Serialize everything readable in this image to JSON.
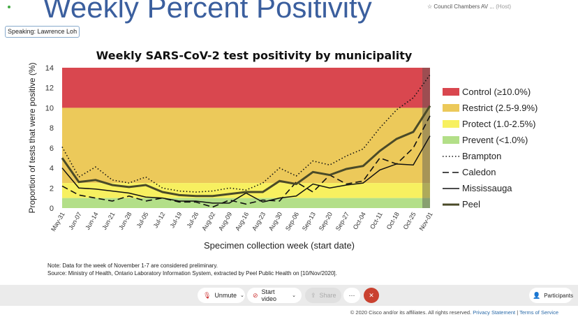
{
  "slide": {
    "title": "Weekly Percent Positivity",
    "note": "Note: Data for the week of November 1-7 are considered preliminary.",
    "source": "Source: Ministry of Health, Ontario Laboratory Information System, extracted by Peel Public Health on [10/Nov/2020]."
  },
  "meeting": {
    "speaking": "Speaking: Lawrence Loh",
    "name": "Council Chambers AV ...",
    "role": "(Host)"
  },
  "toolbar": {
    "unmute": "Unmute",
    "start_video": "Start video",
    "share": "Share",
    "more": "···",
    "participants": "Participants"
  },
  "footer": {
    "copyright": "© 2020 Cisco and/or its affiliates. All rights reserved.",
    "privacy": "Privacy Statement",
    "sep": "|",
    "terms": "Terms of Service"
  },
  "chart_data": {
    "type": "line",
    "title": "Weekly SARS-CoV-2 test positivity by municipality",
    "xlabel": "Specimen collection week (start date)",
    "ylabel": "Proportion of tests that were positive (%)",
    "ylim": [
      0,
      14
    ],
    "yticks": [
      "0",
      "2",
      "4",
      "6",
      "8",
      "10",
      "12",
      "14"
    ],
    "categories": [
      "May-31",
      "Jun-07",
      "Jun-14",
      "Jun-21",
      "Jun-28",
      "Jul-05",
      "Jul-12",
      "Jul-19",
      "Jul-26",
      "Aug-02",
      "Aug-09",
      "Aug-16",
      "Aug-23",
      "Aug-30",
      "Sep-06",
      "Sep-13",
      "Sep-20",
      "Sep-27",
      "Oct-04",
      "Oct-11",
      "Oct-18",
      "Oct-25",
      "Nov-01"
    ],
    "bands": [
      {
        "label": "Control (≥10.0%)",
        "from": 10,
        "to": 14,
        "color": "#d9474f"
      },
      {
        "label": "Restrict (2.5-9.9%)",
        "from": 2.5,
        "to": 10,
        "color": "#ecc95a"
      },
      {
        "label": "Protect (1.0-2.5%)",
        "from": 1,
        "to": 2.5,
        "color": "#f7f060"
      },
      {
        "label": "Prevent (<1.0%)",
        "from": 0,
        "to": 1,
        "color": "#b3df88"
      }
    ],
    "series": [
      {
        "name": "Brampton",
        "style": "dotted",
        "values": [
          6.1,
          3.1,
          4.1,
          2.8,
          2.5,
          3.1,
          2.0,
          1.7,
          1.6,
          1.7,
          2.0,
          1.8,
          2.5,
          4.0,
          3.2,
          4.7,
          4.3,
          5.2,
          5.9,
          8.0,
          9.8,
          11.0,
          13.3
        ]
      },
      {
        "name": "Caledon",
        "style": "dashed",
        "values": [
          2.2,
          1.3,
          1.0,
          0.7,
          1.2,
          0.7,
          1.0,
          0.6,
          0.6,
          0.1,
          0.8,
          0.4,
          0.8,
          0.7,
          2.6,
          1.6,
          3.3,
          2.4,
          2.7,
          5.0,
          4.4,
          6.0,
          9.2
        ]
      },
      {
        "name": "Mississauga",
        "style": "solid",
        "values": [
          4.0,
          2.0,
          1.9,
          1.7,
          1.5,
          1.1,
          1.0,
          0.7,
          0.7,
          0.5,
          0.5,
          1.5,
          0.6,
          1.0,
          1.2,
          2.4,
          2.0,
          2.3,
          2.5,
          3.8,
          4.4,
          4.3,
          7.2
        ]
      },
      {
        "name": "Peel",
        "style": "thick",
        "values": [
          5.0,
          2.6,
          2.8,
          2.3,
          2.1,
          2.3,
          1.6,
          1.3,
          1.2,
          1.2,
          1.4,
          1.6,
          1.6,
          2.7,
          2.4,
          3.6,
          3.3,
          3.9,
          4.2,
          5.7,
          6.9,
          7.6,
          10.2
        ]
      }
    ]
  }
}
